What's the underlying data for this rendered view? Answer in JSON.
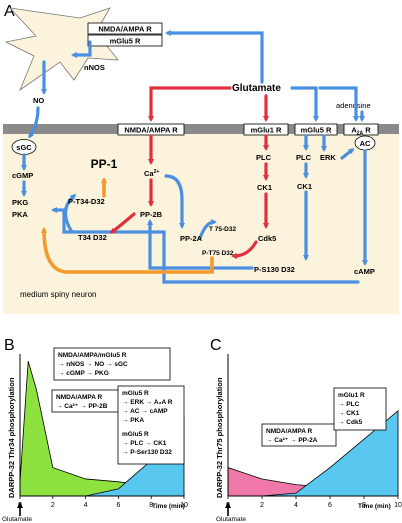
{
  "panel_a": {
    "label": "A",
    "nmda_ampa_top": "NMDA/AMPA R",
    "mglu5_top": "mGlu5 R",
    "nnos": "nNOS",
    "no": "NO",
    "glutamate": "Glutamate",
    "adenosine": "adenosine",
    "nmda_ampa_mem": "NMDA/AMPA R",
    "mglu1_mem": "mGlu1 R",
    "mglu5_mem": "mGlu5 R",
    "a2a_mem": "A",
    "a2a_sub": "2A",
    "a2a_suffix": " R",
    "ac": "AC",
    "sgc": "sGC",
    "cgmp": "cGMP",
    "pp1": "PP-1",
    "ca": "Ca",
    "ca_sup": "2+",
    "plc1": "PLC",
    "plc5": "PLC",
    "erk": "ERK",
    "ck1a": "CK1",
    "ck1b": "CK1",
    "pkg": "PKG",
    "pka": "PKA",
    "pt34": "P-T34-D32",
    "t34": "T34 D32",
    "pp2b": "PP-2B",
    "pp2a": "PP-2A",
    "t75": "T 75-D32",
    "pt75": "P-T75 D32",
    "cdk5": "Cdk5",
    "ps130": "P-S130 D32",
    "camp": "cAMP",
    "neuron": "medium spiny neuron"
  },
  "panel_b": {
    "label": "B",
    "ylabel": "DARPP-32 Thr34 phosphorylation",
    "xlabel": "Time (min)",
    "stim": "Glutamate",
    "box1": [
      "NMDA/AMPA/mGlu5 R",
      "→ nNOS → NO → sGC",
      "→ cGMP → PKG"
    ],
    "box2": [
      "NMDA/AMPA R",
      "→ Ca²⁺ → PP-2B"
    ],
    "box3": [
      "mGlu5 R",
      "→ ERK → A₂A R",
      "→ AC → cAMP",
      "→ PKA",
      "mGlu5 R",
      "→ PLC → CK1",
      "→ P-Ser130 D32"
    ],
    "colors": {
      "early": "#8ee23f",
      "late": "#58c8f0"
    }
  },
  "panel_c": {
    "label": "C",
    "ylabel": "DARPP-32 Thr75 phosphorylation",
    "xlabel": "Time (min)",
    "stim": "Glutamate",
    "box1": [
      "NMDA/AMPA R",
      "→ Ca²⁺ → PP-2A"
    ],
    "box2": [
      "mGlu1 R",
      "→ PLC",
      "→ CK1",
      "→ Cdk5"
    ],
    "colors": {
      "early": "#f078a8",
      "late": "#58c8f0"
    }
  },
  "chart_data": [
    {
      "type": "area",
      "x": [
        0,
        0.5,
        1,
        2,
        4,
        6,
        8,
        10
      ],
      "series": [
        {
          "values": [
            0.1,
            0.95,
            0.75,
            0.2,
            0.12,
            0.1,
            0.07,
            0.03
          ]
        },
        {
          "values": [
            0,
            0,
            0,
            0,
            0,
            0.05,
            0.25,
            0.55
          ]
        }
      ],
      "xticks": [
        0,
        2,
        4,
        6,
        8,
        10
      ],
      "xlim": [
        0,
        10
      ],
      "xlabel": "Time (min)",
      "ylabel": "DARPP-32 Thr34 phosphorylation"
    },
    {
      "type": "area",
      "x": [
        0,
        2,
        4,
        6,
        8,
        10
      ],
      "series": [
        {
          "values": [
            0.2,
            0.12,
            0.08,
            0.06,
            0.04,
            0.03
          ]
        },
        {
          "values": [
            0,
            0,
            0.02,
            0.2,
            0.4,
            0.6
          ]
        }
      ],
      "xticks": [
        0,
        2,
        4,
        6,
        8,
        10
      ],
      "xlim": [
        0,
        10
      ],
      "xlabel": "Time (min)",
      "ylabel": "DARPP-32 Thr75 phosphorylation"
    }
  ]
}
